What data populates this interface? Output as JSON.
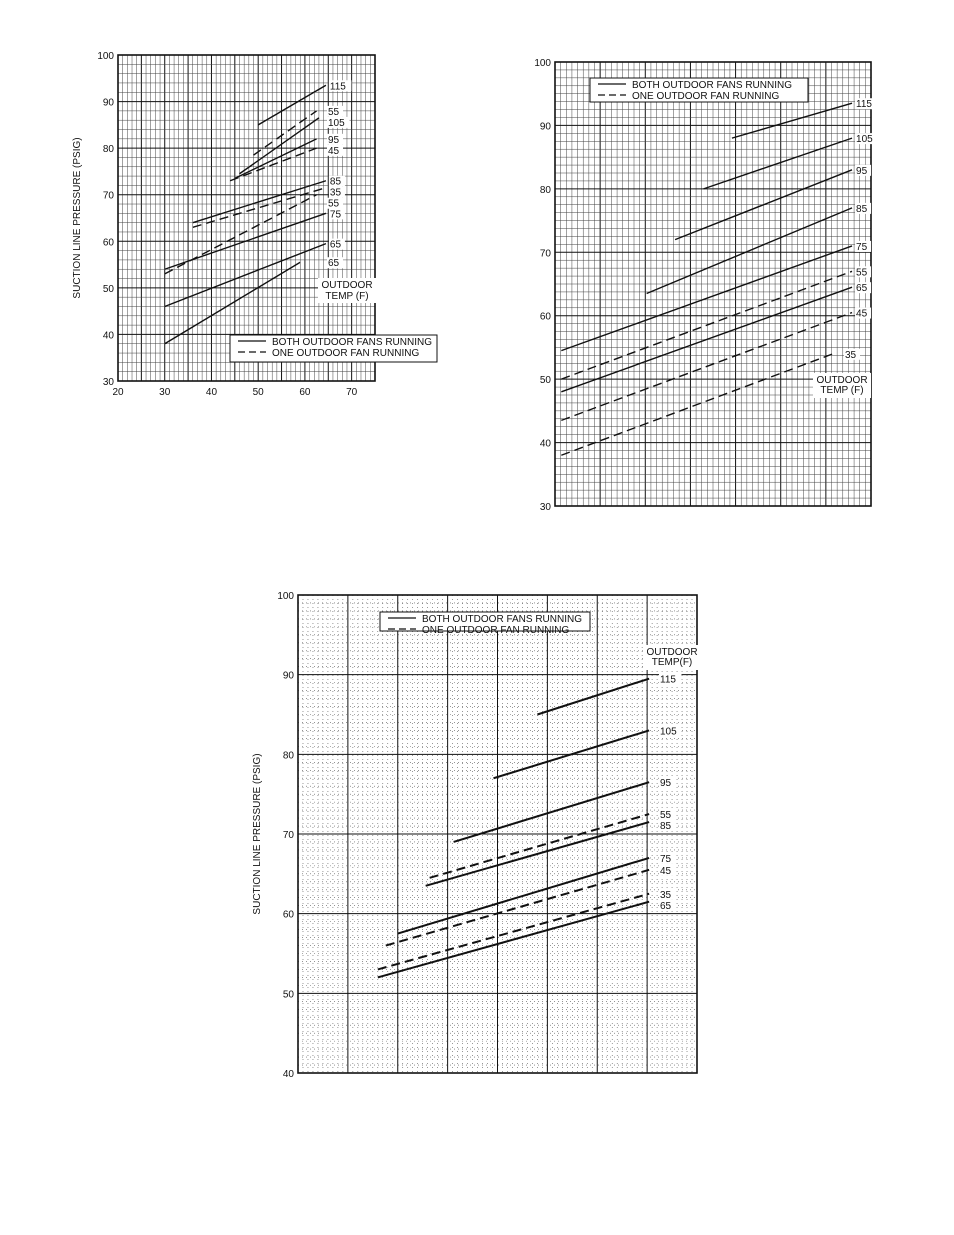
{
  "chart_data": [
    {
      "type": "line",
      "ylabel": "SUCTION LINE PRESSURE (PSIG)",
      "xlabel": "",
      "xlim": [
        20,
        75
      ],
      "ylim": [
        30,
        100
      ],
      "x_ticks": [
        "20",
        "30",
        "40",
        "50",
        "60",
        "70"
      ],
      "y_ticks": [
        "30",
        "40",
        "50",
        "60",
        "70",
        "80",
        "90",
        "100"
      ],
      "legend": [
        "BOTH OUTDOOR FANS RUNNING",
        "ONE OUTDOOR FAN RUNNING"
      ],
      "legend_position": "bottom-right",
      "annotation": [
        "OUTDOOR",
        "TEMP (F)"
      ],
      "series": [
        {
          "name": "115",
          "style": "solid",
          "points": [
            [
              50,
              85
            ],
            [
              64.5,
              93.5
            ]
          ]
        },
        {
          "name": "55",
          "style": "dashed",
          "points": [
            [
              49,
              78.5
            ],
            [
              62.5,
              88
            ]
          ]
        },
        {
          "name": "105",
          "style": "solid",
          "points": [
            [
              46,
              74.5
            ],
            [
              63,
              86.5
            ]
          ]
        },
        {
          "name": "95",
          "style": "solid",
          "points": [
            [
              45,
              73.5
            ],
            [
              62.5,
              82
            ]
          ]
        },
        {
          "name": "45",
          "style": "dashed",
          "points": [
            [
              44,
              73
            ],
            [
              62.5,
              80
            ]
          ]
        },
        {
          "name": "85",
          "style": "solid",
          "points": [
            [
              36,
              64
            ],
            [
              64.5,
              73
            ]
          ]
        },
        {
          "name": "35",
          "style": "dashed",
          "points": [
            [
              36,
              63
            ],
            [
              64.5,
              71.5
            ]
          ]
        },
        {
          "name": "75",
          "style": "solid",
          "points": [
            [
              30,
              54
            ],
            [
              64.5,
              66
            ]
          ]
        },
        {
          "name": "55-low",
          "style": "dashed",
          "points": [
            [
              30,
              53
            ],
            [
              62.5,
              70
            ]
          ]
        },
        {
          "name": "65",
          "style": "solid",
          "points": [
            [
              30,
              46
            ],
            [
              64.5,
              59.5
            ]
          ]
        },
        {
          "name": "65-low",
          "style": "solid",
          "points": [
            [
              30,
              38
            ],
            [
              59,
              55.5
            ]
          ]
        }
      ]
    },
    {
      "type": "line",
      "ylabel": "",
      "xlabel": "",
      "ylim": [
        30,
        100
      ],
      "y_ticks": [
        "30",
        "40",
        "50",
        "60",
        "70",
        "80",
        "90",
        "100"
      ],
      "legend": [
        "BOTH OUTDOOR FANS RUNNING",
        "ONE OUTDOOR FAN RUNNING"
      ],
      "legend_position": "top-left",
      "annotation": [
        "OUTDOOR",
        "TEMP (F)"
      ],
      "series": [
        {
          "name": "115",
          "style": "solid",
          "points": [
            [
              0.56,
              88
            ],
            [
              0.94,
              93.5
            ]
          ]
        },
        {
          "name": "105",
          "style": "solid",
          "points": [
            [
              0.47,
              80
            ],
            [
              0.94,
              88
            ]
          ]
        },
        {
          "name": "95",
          "style": "solid",
          "points": [
            [
              0.38,
              72
            ],
            [
              0.94,
              83
            ]
          ]
        },
        {
          "name": "85",
          "style": "solid",
          "points": [
            [
              0.29,
              63.5
            ],
            [
              0.94,
              77
            ]
          ]
        },
        {
          "name": "75",
          "style": "solid",
          "points": [
            [
              0.02,
              54.5
            ],
            [
              0.94,
              71
            ]
          ]
        },
        {
          "name": "55",
          "style": "dashed",
          "points": [
            [
              0.02,
              50
            ],
            [
              0.94,
              67
            ]
          ]
        },
        {
          "name": "65",
          "style": "solid",
          "points": [
            [
              0.02,
              48
            ],
            [
              0.94,
              64.5
            ]
          ]
        },
        {
          "name": "45",
          "style": "dashed",
          "points": [
            [
              0.02,
              43.5
            ],
            [
              0.94,
              60.5
            ]
          ]
        },
        {
          "name": "35",
          "style": "dashed",
          "points": [
            [
              0.02,
              38
            ],
            [
              0.88,
              54
            ]
          ]
        }
      ]
    },
    {
      "type": "line",
      "ylabel": "SUCTION LINE PRESSURE (PSIG)",
      "xlabel": "",
      "ylim": [
        40,
        100
      ],
      "y_ticks": [
        "40",
        "50",
        "60",
        "70",
        "80",
        "90",
        "100"
      ],
      "legend": [
        "BOTH OUTDOOR FANS RUNNING",
        "ONE OUTDOOR FAN RUNNING"
      ],
      "legend_position": "top-left",
      "annotation": [
        "OUTDOOR",
        "TEMP(F)"
      ],
      "series": [
        {
          "name": "115",
          "style": "solid",
          "points": [
            [
              0.6,
              85
            ],
            [
              0.88,
              89.5
            ]
          ]
        },
        {
          "name": "105",
          "style": "solid",
          "points": [
            [
              0.49,
              77
            ],
            [
              0.88,
              83
            ]
          ]
        },
        {
          "name": "95",
          "style": "solid",
          "points": [
            [
              0.39,
              69
            ],
            [
              0.88,
              76.5
            ]
          ]
        },
        {
          "name": "55",
          "style": "dashed",
          "points": [
            [
              0.33,
              64.5
            ],
            [
              0.88,
              72.5
            ]
          ]
        },
        {
          "name": "85",
          "style": "solid",
          "points": [
            [
              0.32,
              63.5
            ],
            [
              0.88,
              71.5
            ]
          ]
        },
        {
          "name": "75",
          "style": "solid",
          "points": [
            [
              0.25,
              57.5
            ],
            [
              0.88,
              67
            ]
          ]
        },
        {
          "name": "45",
          "style": "dashed",
          "points": [
            [
              0.22,
              56
            ],
            [
              0.88,
              65.5
            ]
          ]
        },
        {
          "name": "35",
          "style": "dashed",
          "points": [
            [
              0.2,
              53
            ],
            [
              0.88,
              62.5
            ]
          ]
        },
        {
          "name": "65",
          "style": "solid",
          "points": [
            [
              0.2,
              52
            ],
            [
              0.88,
              61.5
            ]
          ]
        }
      ]
    }
  ]
}
